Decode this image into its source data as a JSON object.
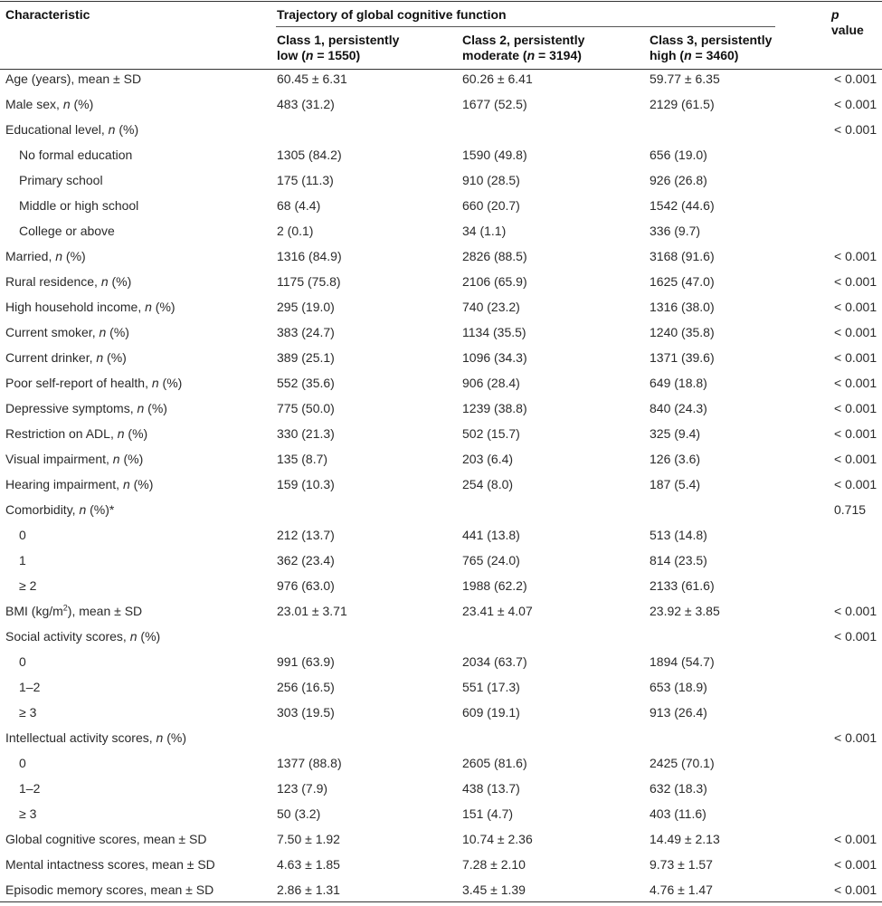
{
  "header": {
    "characteristic": "Characteristic",
    "trajectory": "Trajectory of global cognitive function",
    "class1_line1": "Class 1, persistently",
    "class1_line2": "low (n = 1550)",
    "class2_line1": "Class 2, persistently",
    "class2_line2": "moderate (n = 3194)",
    "class3_line1": "Class 3, persistently",
    "class3_line2": "high (n = 3460)",
    "p_line1": "p",
    "p_line2": "value"
  },
  "rows": [
    {
      "label": "Age (years), mean ± SD",
      "v1": "60.45 ± 6.31",
      "v2": "60.26 ± 6.41",
      "v3": "59.77 ± 6.35",
      "p": "< 0.001"
    },
    {
      "label": "Male sex, n (%)",
      "v1": "483 (31.2)",
      "v2": "1677 (52.5)",
      "v3": "2129 (61.5)",
      "p": "< 0.001"
    },
    {
      "label": "Educational level, n (%)",
      "v1": "",
      "v2": "",
      "v3": "",
      "p": "< 0.001"
    },
    {
      "label": "No formal education",
      "v1": "1305 (84.2)",
      "v2": "1590 (49.8)",
      "v3": "656 (19.0)",
      "p": ""
    },
    {
      "label": "Primary school",
      "v1": "175 (11.3)",
      "v2": "910 (28.5)",
      "v3": "926 (26.8)",
      "p": ""
    },
    {
      "label": "Middle or high school",
      "v1": "68 (4.4)",
      "v2": "660 (20.7)",
      "v3": "1542 (44.6)",
      "p": ""
    },
    {
      "label": "College or above",
      "v1": "2 (0.1)",
      "v2": "34 (1.1)",
      "v3": "336 (9.7)",
      "p": ""
    },
    {
      "label": "Married, n (%)",
      "v1": "1316 (84.9)",
      "v2": "2826 (88.5)",
      "v3": "3168 (91.6)",
      "p": "< 0.001"
    },
    {
      "label": "Rural residence, n (%)",
      "v1": "1175 (75.8)",
      "v2": "2106 (65.9)",
      "v3": "1625 (47.0)",
      "p": "< 0.001"
    },
    {
      "label": "High household income, n (%)",
      "v1": "295 (19.0)",
      "v2": "740 (23.2)",
      "v3": "1316 (38.0)",
      "p": "< 0.001"
    },
    {
      "label": "Current smoker, n (%)",
      "v1": "383 (24.7)",
      "v2": "1134 (35.5)",
      "v3": "1240 (35.8)",
      "p": "< 0.001"
    },
    {
      "label": "Current drinker, n (%)",
      "v1": "389 (25.1)",
      "v2": "1096 (34.3)",
      "v3": "1371 (39.6)",
      "p": "< 0.001"
    },
    {
      "label": "Poor self-report of health, n (%)",
      "v1": "552 (35.6)",
      "v2": "906 (28.4)",
      "v3": "649 (18.8)",
      "p": "< 0.001"
    },
    {
      "label": "Depressive symptoms, n (%)",
      "v1": "775 (50.0)",
      "v2": "1239 (38.8)",
      "v3": "840 (24.3)",
      "p": "< 0.001"
    },
    {
      "label": "Restriction on ADL, n (%)",
      "v1": "330 (21.3)",
      "v2": "502 (15.7)",
      "v3": "325 (9.4)",
      "p": "< 0.001"
    },
    {
      "label": "Visual impairment, n (%)",
      "v1": "135 (8.7)",
      "v2": "203 (6.4)",
      "v3": "126 (3.6)",
      "p": "< 0.001"
    },
    {
      "label": "Hearing impairment, n (%)",
      "v1": "159 (10.3)",
      "v2": "254 (8.0)",
      "v3": "187 (5.4)",
      "p": "< 0.001"
    },
    {
      "label": "Comorbidity, n (%)*",
      "v1": "",
      "v2": "",
      "v3": "",
      "p": "0.715"
    },
    {
      "label": "0",
      "v1": "212 (13.7)",
      "v2": "441 (13.8)",
      "v3": "513 (14.8)",
      "p": ""
    },
    {
      "label": "1",
      "v1": "362 (23.4)",
      "v2": "765 (24.0)",
      "v3": "814 (23.5)",
      "p": ""
    },
    {
      "label": "≥ 2",
      "v1": "976 (63.0)",
      "v2": "1988 (62.2)",
      "v3": "2133 (61.6)",
      "p": ""
    },
    {
      "label": "BMI (kg/m2), mean ± SD",
      "v1": "23.01 ± 3.71",
      "v2": "23.41 ± 4.07",
      "v3": "23.92 ± 3.85",
      "p": "< 0.001"
    },
    {
      "label": "Social activity scores, n (%)",
      "v1": "",
      "v2": "",
      "v3": "",
      "p": "< 0.001"
    },
    {
      "label": "0",
      "v1": "991 (63.9)",
      "v2": "2034 (63.7)",
      "v3": "1894 (54.7)",
      "p": ""
    },
    {
      "label": "1–2",
      "v1": "256 (16.5)",
      "v2": "551 (17.3)",
      "v3": "653 (18.9)",
      "p": ""
    },
    {
      "label": "≥ 3",
      "v1": "303 (19.5)",
      "v2": "609 (19.1)",
      "v3": "913 (26.4)",
      "p": ""
    },
    {
      "label": "Intellectual activity scores, n (%)",
      "v1": "",
      "v2": "",
      "v3": "",
      "p": "< 0.001"
    },
    {
      "label": "0",
      "v1": "1377 (88.8)",
      "v2": "2605 (81.6)",
      "v3": "2425 (70.1)",
      "p": ""
    },
    {
      "label": "1–2",
      "v1": "123 (7.9)",
      "v2": "438 (13.7)",
      "v3": "632 (18.3)",
      "p": ""
    },
    {
      "label": "≥ 3",
      "v1": "50 (3.2)",
      "v2": "151 (4.7)",
      "v3": "403 (11.6)",
      "p": ""
    },
    {
      "label": "Global cognitive scores, mean ± SD",
      "v1": "7.50 ± 1.92",
      "v2": "10.74 ± 2.36",
      "v3": "14.49 ± 2.13",
      "p": "< 0.001"
    },
    {
      "label": "Mental intactness scores, mean ± SD",
      "v1": "4.63 ± 1.85",
      "v2": "7.28 ± 2.10",
      "v3": "9.73 ± 1.57",
      "p": "< 0.001"
    },
    {
      "label": "Episodic memory scores, mean ± SD",
      "v1": "2.86 ± 1.31",
      "v2": "3.45 ± 1.39",
      "v3": "4.76 ± 1.47",
      "p": "< 0.001"
    }
  ]
}
